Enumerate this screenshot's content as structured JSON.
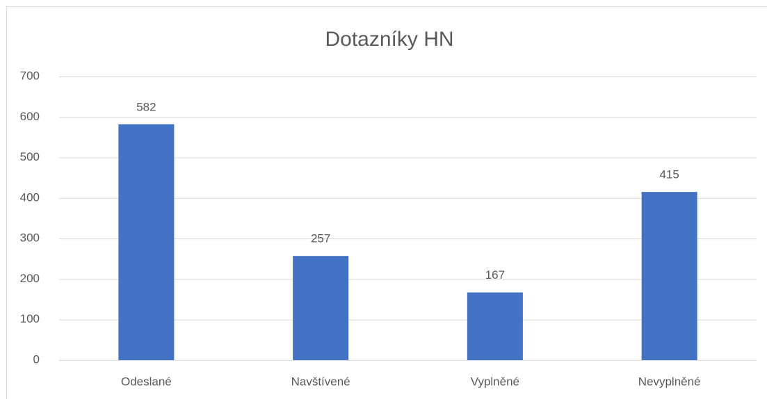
{
  "chart_data": {
    "type": "bar",
    "title": "Dotazníky HN",
    "categories": [
      "Odeslané",
      "Navštívené",
      "Vyplněné",
      "Nevyplněné"
    ],
    "values": [
      582,
      257,
      167,
      415
    ],
    "color": "#4472c4",
    "ylim": [
      0,
      700
    ],
    "yticks": [
      0,
      100,
      200,
      300,
      400,
      500,
      600,
      700
    ],
    "grid": true
  }
}
